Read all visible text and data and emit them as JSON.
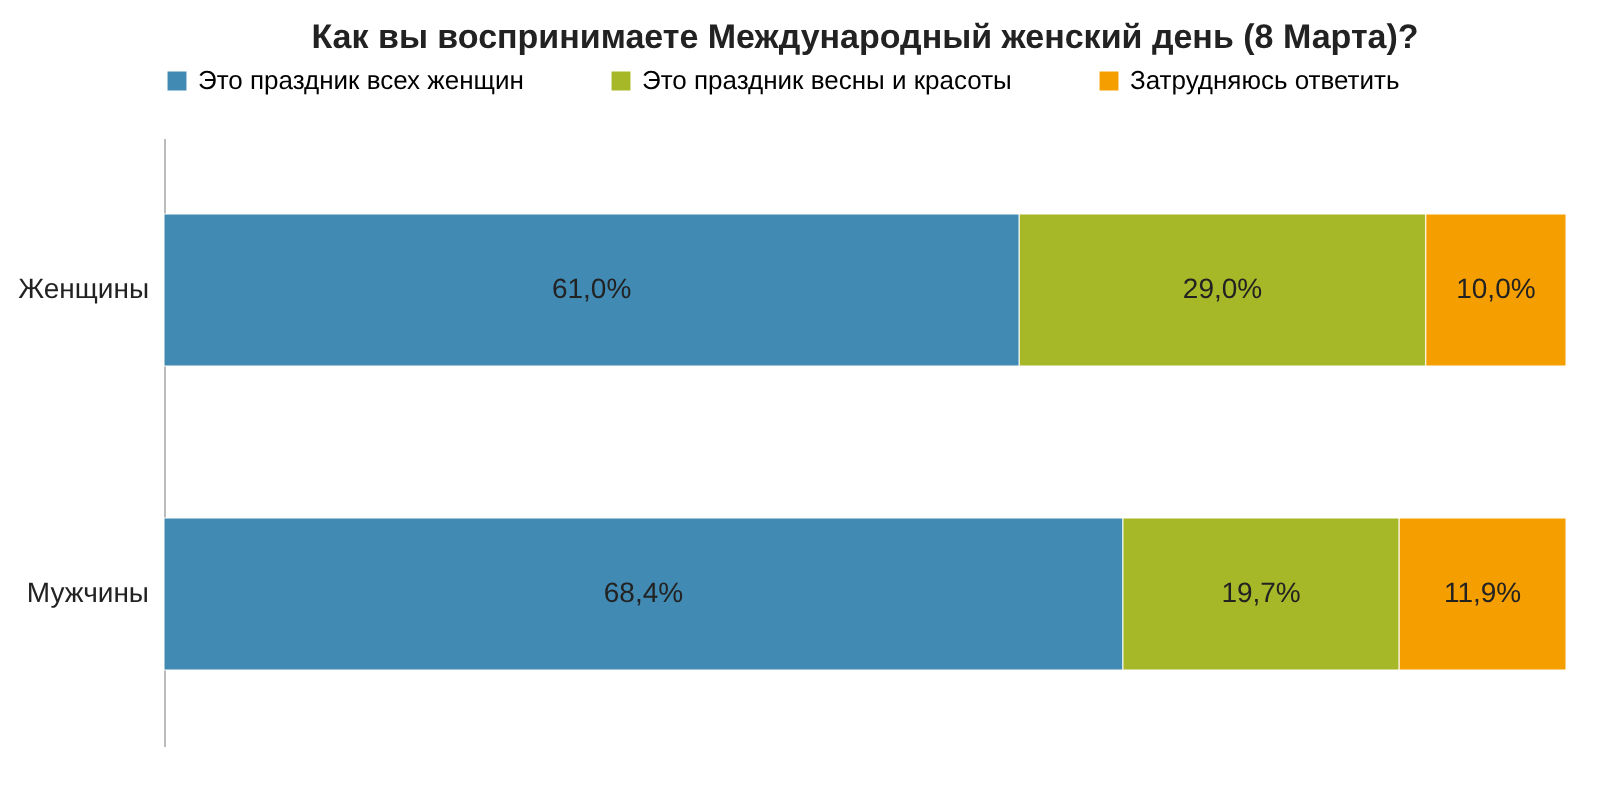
{
  "chart_data": {
    "type": "bar",
    "orientation": "horizontal",
    "stacked": true,
    "title": "Как вы воспринимаете Международный женский день (8 Марта)?",
    "categories": [
      "Женщины",
      "Мужчины"
    ],
    "series": [
      {
        "name": "Это праздник всех женщин",
        "color": "#418ab3",
        "values": [
          61.0,
          68.4
        ],
        "value_labels": [
          "61,0%",
          "68,4%"
        ]
      },
      {
        "name": "Это праздник весны и красоты",
        "color": "#a6b727",
        "values": [
          29.0,
          19.7
        ],
        "value_labels": [
          "29,0%",
          "19,7%"
        ]
      },
      {
        "name": "Затрудняюсь ответить",
        "color": "#f59e00",
        "values": [
          10.0,
          11.9
        ],
        "value_labels": [
          "10,0%",
          "11,9%"
        ]
      }
    ],
    "xlim": [
      0,
      100
    ],
    "tick_labels": "y",
    "legend": "top",
    "grid": false
  }
}
